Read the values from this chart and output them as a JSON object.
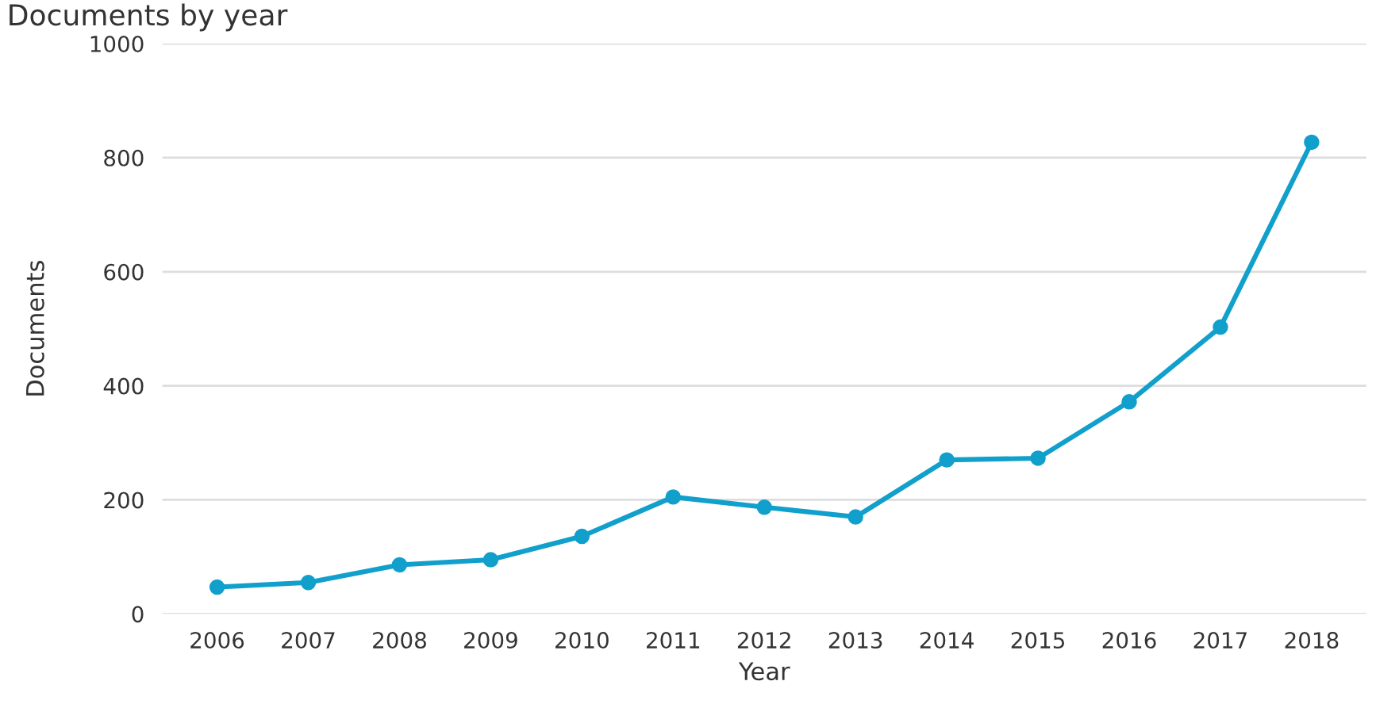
{
  "chart_data": {
    "type": "line",
    "title": "Documents by year",
    "xlabel": "Year",
    "ylabel": "Documents",
    "categories": [
      "2006",
      "2007",
      "2008",
      "2009",
      "2010",
      "2011",
      "2012",
      "2013",
      "2014",
      "2015",
      "2016",
      "2017",
      "2018"
    ],
    "series": [
      {
        "color": "#119fcb",
        "values": [
          47,
          55,
          86,
          95,
          136,
          205,
          187,
          170,
          270,
          273,
          372,
          503,
          827
        ]
      }
    ],
    "ylim": [
      0,
      1000
    ],
    "yticks": [
      0,
      200,
      400,
      600,
      800,
      1000
    ],
    "grid": "y",
    "marker": "circle",
    "line_style": "solid"
  }
}
